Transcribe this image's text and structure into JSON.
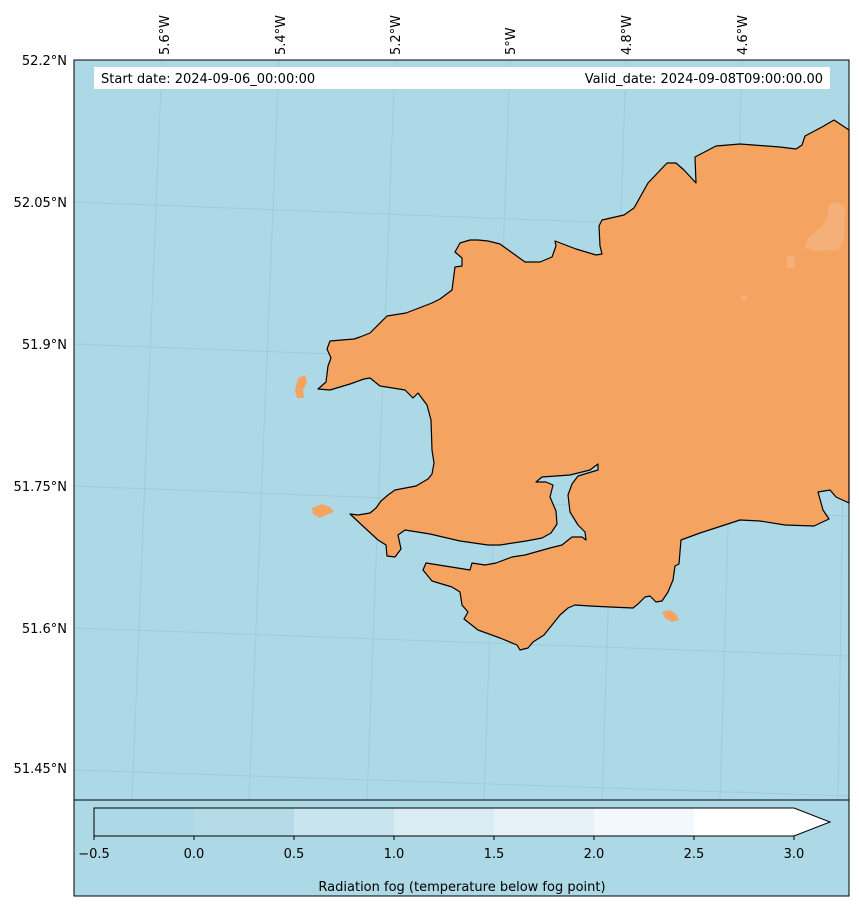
{
  "map": {
    "start_label": "Start date: 2024-09-06_00:00:00",
    "valid_label": "Valid_date: 2024-09-08T09:00:00.00",
    "sea_color": "#add8e6",
    "land_color": "#f4a460",
    "coast_color": "#000000",
    "longitude_labels": [
      "5.6°W",
      "5.4°W",
      "5.2°W",
      "5°W",
      "4.8°W",
      "4.6°W"
    ],
    "latitude_labels": [
      "52.2°N",
      "52.05°N",
      "51.9°N",
      "51.75°N",
      "51.6°N",
      "51.45°N"
    ]
  },
  "colorbar": {
    "label": "Radiation fog (temperature below fog point)",
    "ticks": [
      "−0.5",
      "0.0",
      "0.5",
      "1.0",
      "1.5",
      "2.0",
      "2.5",
      "3.0"
    ],
    "bin_colors": [
      "#add8e6",
      "#b6dbe8",
      "#c8e4ee",
      "#d9ecf3",
      "#e6f2f7",
      "#f2f8fb",
      "#ffffff"
    ],
    "extend": "max"
  }
}
